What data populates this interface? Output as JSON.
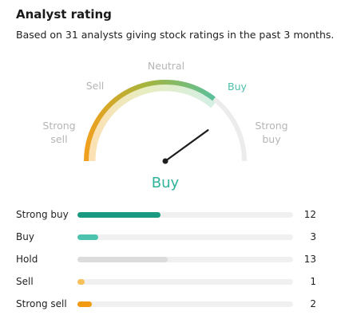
{
  "header": {
    "title": "Analyst rating",
    "subtitle": "Based on 31 analysts giving stock ratings in the past 3 months."
  },
  "gauge": {
    "labels": {
      "strong_sell": [
        "Strong",
        "sell"
      ],
      "sell": "Sell",
      "neutral": "Neutral",
      "buy": "Buy",
      "strong_buy": [
        "Strong",
        "buy"
      ]
    },
    "verdict": "Buy",
    "needle_value": 0.8,
    "colors": {
      "orange": "#f0a01e",
      "green": "#5cc09a",
      "track": "#ececec",
      "needle": "#1e1e1e",
      "active_label": "#4cbfa8"
    }
  },
  "ratings": [
    {
      "label": "Strong buy",
      "count": "12",
      "fraction": 0.387,
      "color": "#1a9a80"
    },
    {
      "label": "Buy",
      "count": "3",
      "fraction": 0.097,
      "color": "#4cc3ae"
    },
    {
      "label": "Hold",
      "count": "13",
      "fraction": 0.419,
      "color": "#dcdcdc"
    },
    {
      "label": "Sell",
      "count": "1",
      "fraction": 0.032,
      "color": "#f8c05a"
    },
    {
      "label": "Strong sell",
      "count": "2",
      "fraction": 0.065,
      "color": "#f29a12"
    }
  ]
}
